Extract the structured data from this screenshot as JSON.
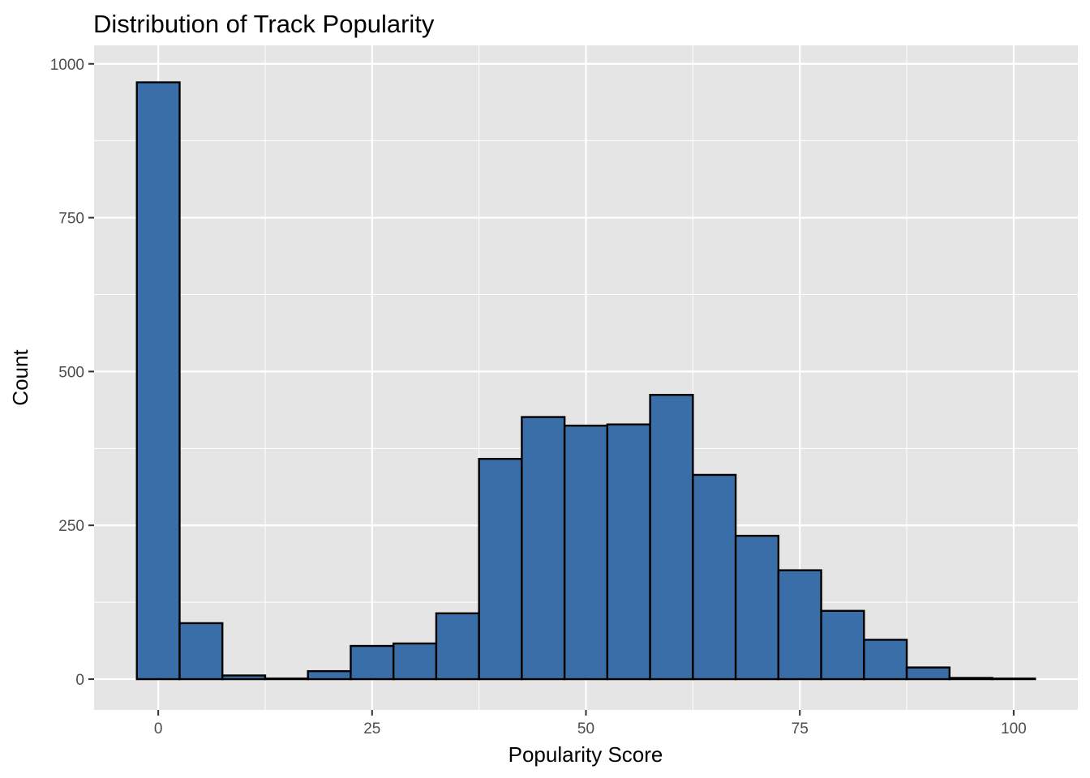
{
  "chart_data": {
    "type": "bar",
    "title": "Distribution of Track Popularity",
    "xlabel": "Popularity Score",
    "ylabel": "Count",
    "x_ticks": [
      "0",
      "25",
      "50",
      "75",
      "100"
    ],
    "y_ticks": [
      "0",
      "250",
      "500",
      "750",
      "1000"
    ],
    "xlim": [
      -7.5,
      107.5
    ],
    "ylim": [
      -50,
      1030
    ],
    "bin_width": 5,
    "bin_centers": [
      0,
      5,
      10,
      15,
      20,
      25,
      30,
      35,
      40,
      45,
      50,
      55,
      60,
      65,
      70,
      75,
      80,
      85,
      90,
      95,
      100
    ],
    "values": [
      970,
      91,
      6,
      1,
      13,
      54,
      58,
      107,
      358,
      426,
      412,
      414,
      462,
      332,
      233,
      177,
      111,
      64,
      19,
      2,
      1
    ],
    "grid": true,
    "legend": "none",
    "colors": {
      "fill": "#3A6EA8",
      "outline": "#000000",
      "panel": "#E5E5E5",
      "grid": "#FFFFFF"
    }
  }
}
